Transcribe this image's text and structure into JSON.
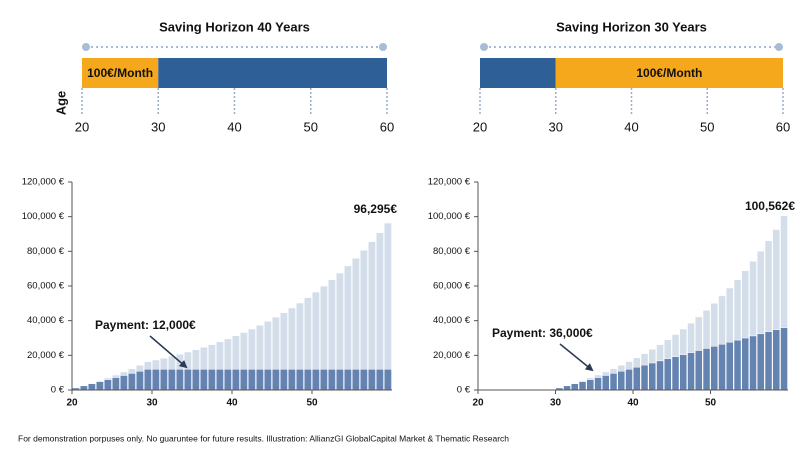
{
  "chart_data": [
    {
      "type": "timeline",
      "title": "Saving Horizon 40 Years",
      "ylabel": "Age",
      "xlim": [
        20,
        60
      ],
      "xticks": [
        20,
        30,
        40,
        50,
        60
      ],
      "segments": [
        {
          "start": 20,
          "end": 30,
          "color": "#f5a81c",
          "label": "100€/Month"
        },
        {
          "start": 30,
          "end": 60,
          "color": "#2e5f97"
        }
      ]
    },
    {
      "type": "timeline",
      "title": "Saving Horizon 30 Years",
      "xlim": [
        20,
        60
      ],
      "xticks": [
        20,
        30,
        40,
        50,
        60
      ],
      "segments": [
        {
          "start": 20,
          "end": 30,
          "color": "#2e5f97"
        },
        {
          "start": 30,
          "end": 60,
          "color": "#f5a81c",
          "label": "100€/Month"
        }
      ]
    },
    {
      "type": "stacked_bar",
      "x": [
        20,
        21,
        22,
        23,
        24,
        25,
        26,
        27,
        28,
        29,
        30,
        31,
        32,
        33,
        34,
        35,
        36,
        37,
        38,
        39,
        40,
        41,
        42,
        43,
        44,
        45,
        46,
        47,
        48,
        49,
        50,
        51,
        52,
        53,
        54,
        55,
        56,
        57,
        58,
        59
      ],
      "xlim": [
        20,
        60
      ],
      "xticks": [
        20,
        30,
        40,
        50
      ],
      "ylim": [
        0,
        120000
      ],
      "yticks": [
        {
          "value": 0,
          "label": "0 €"
        },
        {
          "value": 20000,
          "label": "20,000 €"
        },
        {
          "value": 40000,
          "label": "40,000 €"
        },
        {
          "value": 60000,
          "label": "60,000 €"
        },
        {
          "value": 80000,
          "label": "80,000 €"
        },
        {
          "value": 100000,
          "label": "100,000 €"
        },
        {
          "value": 120000,
          "label": "120,000 €"
        }
      ],
      "series": [
        {
          "color": "#6583b0",
          "values": [
            1200,
            2400,
            3600,
            4800,
            6000,
            7200,
            8400,
            9600,
            10800,
            12000,
            12000,
            12000,
            12000,
            12000,
            12000,
            12000,
            12000,
            12000,
            12000,
            12000,
            12000,
            12000,
            12000,
            12000,
            12000,
            12000,
            12000,
            12000,
            12000,
            12000,
            12000,
            12000,
            12000,
            12000,
            12000,
            12000,
            12000,
            12000,
            12000,
            12000
          ]
        },
        {
          "color": "#d3deea",
          "values": [
            36,
            146,
            335,
            607,
            967,
            1421,
            1974,
            2632,
            3402,
            4290,
            5284,
            6338,
            7457,
            8644,
            9903,
            11239,
            12656,
            14160,
            15756,
            17449,
            19245,
            21151,
            23173,
            25319,
            27595,
            30010,
            32573,
            35292,
            38177,
            41238,
            44485,
            47931,
            51587,
            55466,
            59581,
            63948,
            68580,
            73496,
            78711,
            84295
          ]
        }
      ],
      "annotations": [
        "96,295€",
        "Payment: 12,000€"
      ]
    },
    {
      "type": "stacked_bar",
      "x": [
        20,
        21,
        22,
        23,
        24,
        25,
        26,
        27,
        28,
        29,
        30,
        31,
        32,
        33,
        34,
        35,
        36,
        37,
        38,
        39,
        40,
        41,
        42,
        43,
        44,
        45,
        46,
        47,
        48,
        49,
        50,
        51,
        52,
        53,
        54,
        55,
        56,
        57,
        58,
        59
      ],
      "xlim": [
        20,
        60
      ],
      "xticks": [
        20,
        30,
        40,
        50
      ],
      "ylim": [
        0,
        120000
      ],
      "yticks": [
        {
          "value": 0,
          "label": "0 €"
        },
        {
          "value": 20000,
          "label": "20,000 €"
        },
        {
          "value": 40000,
          "label": "40,000 €"
        },
        {
          "value": 60000,
          "label": "60,000 €"
        },
        {
          "value": 80000,
          "label": "80,000 €"
        },
        {
          "value": 100000,
          "label": "100,000 €"
        },
        {
          "value": 120000,
          "label": "120,000 €"
        }
      ],
      "series": [
        {
          "color": "#6583b0",
          "values": [
            0,
            0,
            0,
            0,
            0,
            0,
            0,
            0,
            0,
            0,
            1200,
            2400,
            3600,
            4800,
            6000,
            7200,
            8400,
            9600,
            10800,
            12000,
            13200,
            14400,
            15600,
            16800,
            18000,
            19200,
            20400,
            21600,
            22800,
            24000,
            25200,
            26400,
            27600,
            28800,
            30000,
            31200,
            32400,
            33600,
            34800,
            36000
          ]
        },
        {
          "color": "#d3deea",
          "values": [
            0,
            0,
            0,
            0,
            0,
            0,
            0,
            0,
            0,
            0,
            36,
            147,
            338,
            614,
            980,
            1442,
            2005,
            2676,
            3461,
            4367,
            5401,
            6572,
            7887,
            9356,
            10988,
            12792,
            14780,
            16962,
            19350,
            21957,
            24796,
            27882,
            31229,
            34854,
            38773,
            43004,
            47566,
            52480,
            57767,
            64562
          ]
        }
      ],
      "annotations": [
        "100,562€",
        "Payment: 36,000€"
      ]
    }
  ],
  "footer": "For demonstration porpuses only. No guaruntee for future results. Illustration: AllianzGI GlobalCapital Market & Thematic Research"
}
